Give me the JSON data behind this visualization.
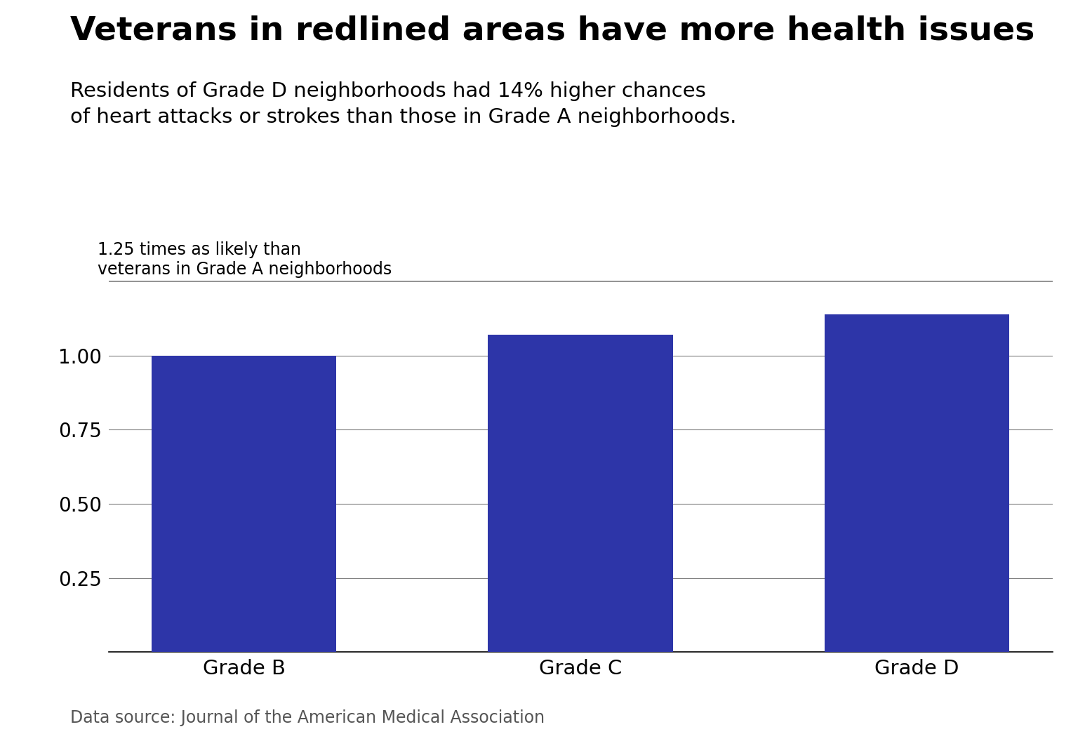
{
  "title": "Veterans in redlined areas have more health issues",
  "subtitle": "Residents of Grade D neighborhoods had 14% higher chances\nof heart attacks or strokes than those in Grade A neighborhoods.",
  "categories": [
    "Grade B",
    "Grade C",
    "Grade D"
  ],
  "values": [
    1.0,
    1.07,
    1.14
  ],
  "bar_color": "#2D35A8",
  "ylim": [
    0,
    1.3
  ],
  "yticks": [
    0.25,
    0.5,
    0.75,
    1.0
  ],
  "reference_line_y": 1.25,
  "reference_line_label_line1": "1.25 times as likely than",
  "reference_line_label_line2": "veterans in Grade A neighborhoods",
  "source": "Data source: Journal of the American Medical Association",
  "background_color": "#ffffff",
  "title_fontsize": 34,
  "subtitle_fontsize": 21,
  "tick_fontsize": 20,
  "xlabel_fontsize": 21,
  "source_fontsize": 17,
  "ref_label_fontsize": 17,
  "bar_width": 0.55
}
